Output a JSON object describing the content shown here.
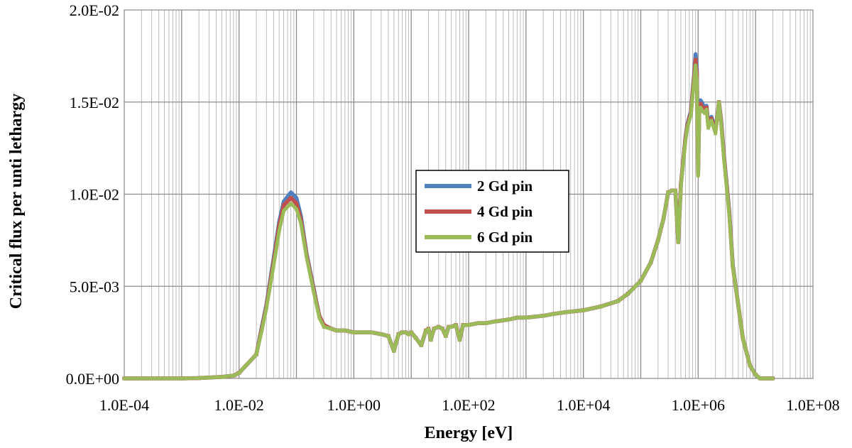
{
  "chart_data": {
    "type": "line",
    "title": "",
    "xlabel": "Energy [eV]",
    "ylabel": "Critical flux per unti lethargy",
    "x_scale": "log",
    "xlim": [
      0.0001,
      100000000
    ],
    "ylim": [
      0,
      0.02
    ],
    "grid": true,
    "legend_position": "center",
    "x_ticks": [
      0.0001,
      0.01,
      1,
      100,
      10000,
      1000000,
      100000000
    ],
    "x_tick_labels": [
      "1.0E-04",
      "1.0E-02",
      "1.0E+00",
      "1.0E+02",
      "1.0E+04",
      "1.0E+06",
      "1.0E+08"
    ],
    "y_ticks": [
      0,
      0.005,
      0.01,
      0.015,
      0.02
    ],
    "y_tick_labels": [
      "0.0E+00",
      "5.0E-03",
      "1.0E-02",
      "1.5E-02",
      "2.0E-02"
    ],
    "x": [
      0.0001,
      0.001,
      0.002,
      0.005,
      0.008,
      0.01,
      0.02,
      0.025,
      0.03,
      0.04,
      0.05,
      0.06,
      0.08,
      0.1,
      0.12,
      0.15,
      0.2,
      0.25,
      0.3,
      0.4,
      0.5,
      0.7,
      1.0,
      1.5,
      2,
      3,
      4,
      5,
      6,
      7,
      8,
      9,
      10,
      12,
      15,
      18,
      20,
      22,
      25,
      30,
      35,
      40,
      45,
      50,
      60,
      70,
      80,
      100,
      150,
      200,
      300,
      500,
      700,
      1000,
      2000,
      3000,
      5000,
      10000,
      20000,
      40000,
      60000,
      100000,
      150000,
      200000,
      250000,
      300000,
      350000,
      400000,
      450000,
      500000,
      550000,
      600000,
      650000,
      700000,
      750000,
      800000,
      850000,
      900000,
      950000,
      1000000,
      1050000,
      1100000,
      1200000,
      1300000,
      1400000,
      1500000,
      1700000,
      2000000,
      2300000,
      2500000,
      2800000,
      3000000,
      3500000,
      4000000,
      5000000,
      6000000,
      8000000,
      10000000,
      12000000,
      15000000,
      20000000
    ],
    "series": [
      {
        "name": "2 Gd pin",
        "color": "#4f81bd",
        "marker": "diamond",
        "values": [
          0.0,
          0.0,
          2e-05,
          8e-05,
          0.00015,
          0.0003,
          0.0013,
          0.0028,
          0.004,
          0.0065,
          0.0085,
          0.0096,
          0.0101,
          0.0098,
          0.0088,
          0.0068,
          0.0049,
          0.0034,
          0.0029,
          0.0027,
          0.0026,
          0.0026,
          0.0025,
          0.0025,
          0.0025,
          0.0024,
          0.0023,
          0.0015,
          0.0024,
          0.0025,
          0.0025,
          0.0024,
          0.0025,
          0.0022,
          0.0018,
          0.0026,
          0.0027,
          0.0021,
          0.0027,
          0.0028,
          0.0027,
          0.0023,
          0.0028,
          0.0028,
          0.0029,
          0.0021,
          0.0029,
          0.0029,
          0.003,
          0.003,
          0.0031,
          0.0032,
          0.0033,
          0.0033,
          0.0034,
          0.0035,
          0.0036,
          0.0037,
          0.0039,
          0.0042,
          0.0046,
          0.0053,
          0.0063,
          0.0075,
          0.0087,
          0.0101,
          0.0102,
          0.0102,
          0.0074,
          0.0105,
          0.0118,
          0.0131,
          0.0138,
          0.0142,
          0.0145,
          0.0156,
          0.0165,
          0.0176,
          0.0168,
          0.0112,
          0.0148,
          0.0151,
          0.0149,
          0.0146,
          0.0148,
          0.0138,
          0.0142,
          0.0135,
          0.015,
          0.0141,
          0.0122,
          0.0112,
          0.009,
          0.0062,
          0.004,
          0.0022,
          0.0007,
          0.0002,
          0.0,
          0.0,
          0.0
        ]
      },
      {
        "name": "4 Gd pin",
        "color": "#c0504d",
        "marker": "square",
        "values": [
          0.0,
          0.0,
          2e-05,
          8e-05,
          0.00015,
          0.0003,
          0.0013,
          0.0027,
          0.0039,
          0.0063,
          0.0083,
          0.0094,
          0.0098,
          0.0095,
          0.0086,
          0.0067,
          0.0048,
          0.0034,
          0.0029,
          0.0027,
          0.0026,
          0.0026,
          0.0025,
          0.0025,
          0.0025,
          0.0024,
          0.0023,
          0.0015,
          0.0024,
          0.0025,
          0.0025,
          0.0024,
          0.0025,
          0.0022,
          0.0018,
          0.0026,
          0.0027,
          0.0021,
          0.0027,
          0.0028,
          0.0027,
          0.0023,
          0.0028,
          0.0028,
          0.0029,
          0.0021,
          0.0029,
          0.0029,
          0.003,
          0.003,
          0.0031,
          0.0032,
          0.0033,
          0.0033,
          0.0034,
          0.0035,
          0.0036,
          0.0037,
          0.0039,
          0.0042,
          0.0046,
          0.0053,
          0.0063,
          0.0075,
          0.0087,
          0.0101,
          0.0102,
          0.0102,
          0.0074,
          0.0105,
          0.0118,
          0.013,
          0.0137,
          0.0141,
          0.0144,
          0.0155,
          0.0163,
          0.0173,
          0.0165,
          0.0111,
          0.0147,
          0.0149,
          0.0147,
          0.0145,
          0.0147,
          0.0137,
          0.0141,
          0.0134,
          0.015,
          0.014,
          0.0121,
          0.0111,
          0.0089,
          0.0061,
          0.004,
          0.0022,
          0.0007,
          0.0002,
          0.0,
          0.0,
          0.0
        ]
      },
      {
        "name": "6 Gd pin",
        "color": "#9bbb59",
        "marker": "triangle",
        "values": [
          0.0,
          0.0,
          2e-05,
          8e-05,
          0.00015,
          0.0003,
          0.0013,
          0.0026,
          0.0038,
          0.0061,
          0.008,
          0.0091,
          0.0095,
          0.0092,
          0.0084,
          0.0066,
          0.0047,
          0.0033,
          0.0028,
          0.0027,
          0.0026,
          0.0026,
          0.0025,
          0.0025,
          0.0025,
          0.0024,
          0.0023,
          0.0015,
          0.0024,
          0.0025,
          0.0025,
          0.0024,
          0.0025,
          0.0022,
          0.0018,
          0.0026,
          0.0027,
          0.0021,
          0.0027,
          0.0028,
          0.0027,
          0.0023,
          0.0028,
          0.0028,
          0.0029,
          0.0021,
          0.0029,
          0.0029,
          0.003,
          0.003,
          0.0031,
          0.0032,
          0.0033,
          0.0033,
          0.0034,
          0.0035,
          0.0036,
          0.0037,
          0.0039,
          0.0042,
          0.0046,
          0.0053,
          0.0063,
          0.0075,
          0.0087,
          0.0101,
          0.0102,
          0.0102,
          0.0074,
          0.0104,
          0.0117,
          0.0129,
          0.0136,
          0.014,
          0.0143,
          0.0153,
          0.0161,
          0.017,
          0.0162,
          0.011,
          0.0145,
          0.0147,
          0.0145,
          0.0144,
          0.0146,
          0.0136,
          0.014,
          0.0133,
          0.015,
          0.0139,
          0.012,
          0.011,
          0.0088,
          0.0061,
          0.004,
          0.0022,
          0.0007,
          0.0002,
          0.0,
          0.0,
          0.0
        ]
      }
    ]
  }
}
